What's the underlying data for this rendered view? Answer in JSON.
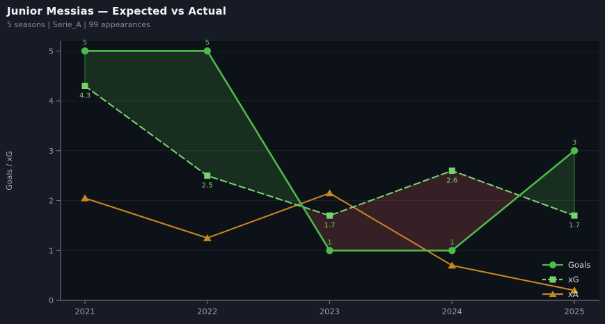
{
  "header": {
    "title": "Junior Messias — Expected vs Actual",
    "subtitle": "5 seasons | Serie_A | 99 appearances"
  },
  "chart_data": {
    "type": "line",
    "x": [
      2021,
      2022,
      2023,
      2024,
      2025
    ],
    "x_tick_labels": [
      "2021",
      "2022",
      "2023",
      "2024",
      "2025"
    ],
    "series": [
      {
        "name": "Goals",
        "values": [
          5,
          5,
          1,
          1,
          3
        ],
        "point_labels": [
          "5",
          "5",
          "1",
          "1",
          "3"
        ],
        "color": "#4dbb47",
        "label_color": "#5fc756",
        "line_style": "solid",
        "marker": "circle"
      },
      {
        "name": "xG",
        "values": [
          4.3,
          2.5,
          1.7,
          2.6,
          1.7
        ],
        "point_labels": [
          "4.3",
          "2.5",
          "1.7",
          "2.6",
          "1.7"
        ],
        "color": "#78d16f",
        "label_color": "#7ed476",
        "line_style": "dashed",
        "marker": "square"
      },
      {
        "name": "xA",
        "values": [
          2.05,
          1.25,
          2.15,
          0.7,
          0.2
        ],
        "point_labels": [],
        "color": "#c5871f",
        "label_color": "#c5871f",
        "line_style": "solid",
        "marker": "triangle"
      }
    ],
    "fill_between": {
      "upper": "Goals",
      "lower": "xG",
      "positive_color": "rgba(77,187,71,0.18)",
      "negative_color": "rgba(205,85,85,0.22)",
      "edge_color": "rgba(77,187,71,0.55)"
    },
    "ylabel": "Goals / xG",
    "yticks": [
      0,
      1,
      2,
      3,
      4,
      5
    ],
    "ylim": [
      0,
      5.2
    ],
    "grid": "horizontal",
    "legend": {
      "position": "lower-right",
      "items": [
        "Goals",
        "xG",
        "xA"
      ]
    }
  },
  "colors": {
    "figure_bg": "#171b25",
    "plot_bg": "#0d1118",
    "grid": "#1b212b",
    "axis": "#7b818b",
    "tick_label": "#959ca8",
    "axis_label": "#a6adb8",
    "title": "#f1f3f6",
    "subtitle": "#858c98",
    "legend_text": "#d9dce1"
  }
}
